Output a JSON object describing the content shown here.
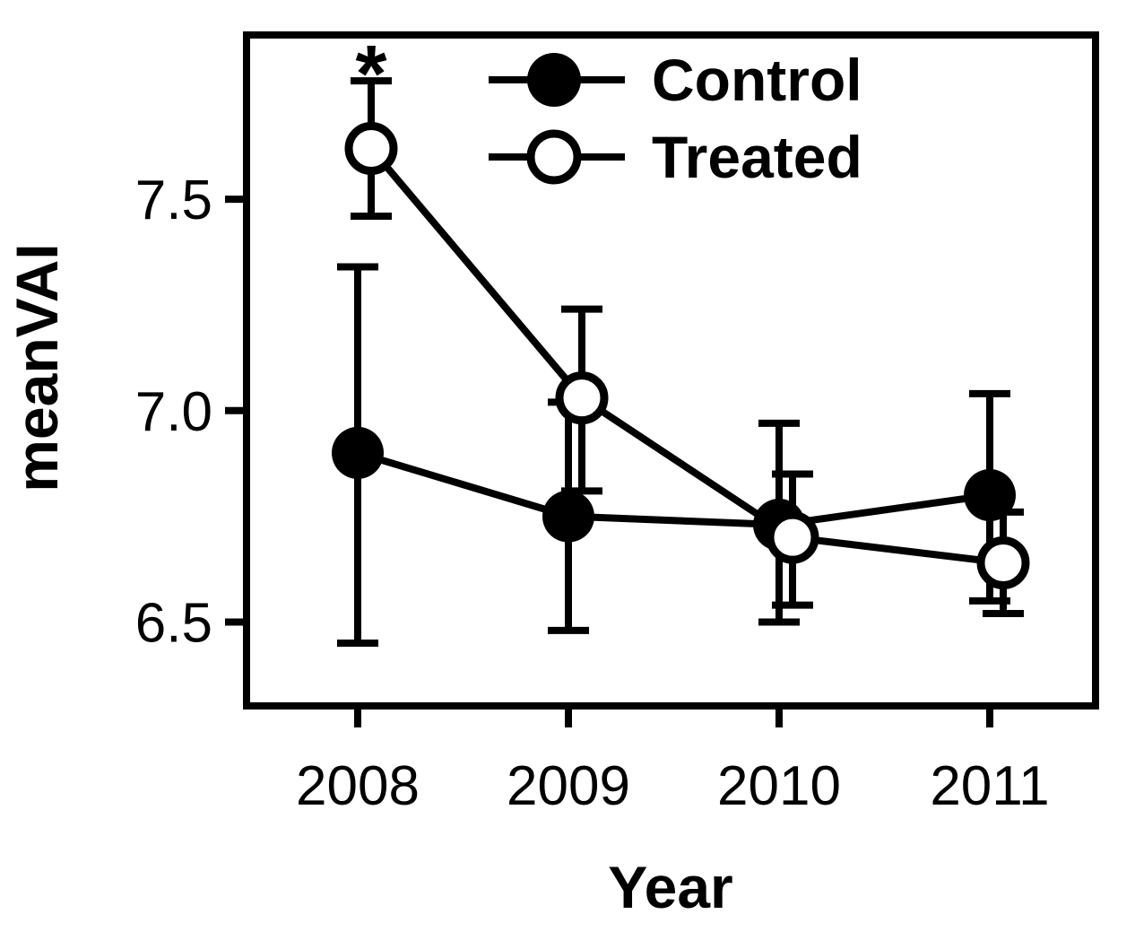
{
  "colors": {
    "foreground": "#000000",
    "background": "#ffffff"
  },
  "chart_data": {
    "type": "line",
    "title": "",
    "xlabel": "Year",
    "ylabel": "meanVAI",
    "categories": [
      "2008",
      "2009",
      "2010",
      "2011"
    ],
    "y_ticks": [
      7.5,
      7.0,
      6.5
    ],
    "y_tick_labels": [
      "7.5",
      "7.0",
      "6.5"
    ],
    "ylim": [
      6.31,
      7.88
    ],
    "grid": false,
    "legend_position": "top-inside",
    "error_bars": true,
    "series": [
      {
        "name": "Control",
        "marker": "filled-circle",
        "color": "#000000",
        "values": [
          6.9,
          6.75,
          6.73,
          6.8
        ],
        "err_low": [
          6.45,
          6.48,
          6.5,
          6.55
        ],
        "err_high": [
          7.34,
          7.02,
          6.97,
          7.04
        ]
      },
      {
        "name": "Treated",
        "marker": "open-circle",
        "color": "#000000",
        "values": [
          7.62,
          7.03,
          6.7,
          6.64
        ],
        "err_low": [
          7.46,
          6.81,
          6.54,
          6.52
        ],
        "err_high": [
          7.78,
          7.24,
          6.85,
          6.76
        ]
      }
    ],
    "annotations": [
      {
        "text": "*",
        "category": "2008",
        "series": "Treated",
        "position": "above-error-bar"
      }
    ]
  }
}
